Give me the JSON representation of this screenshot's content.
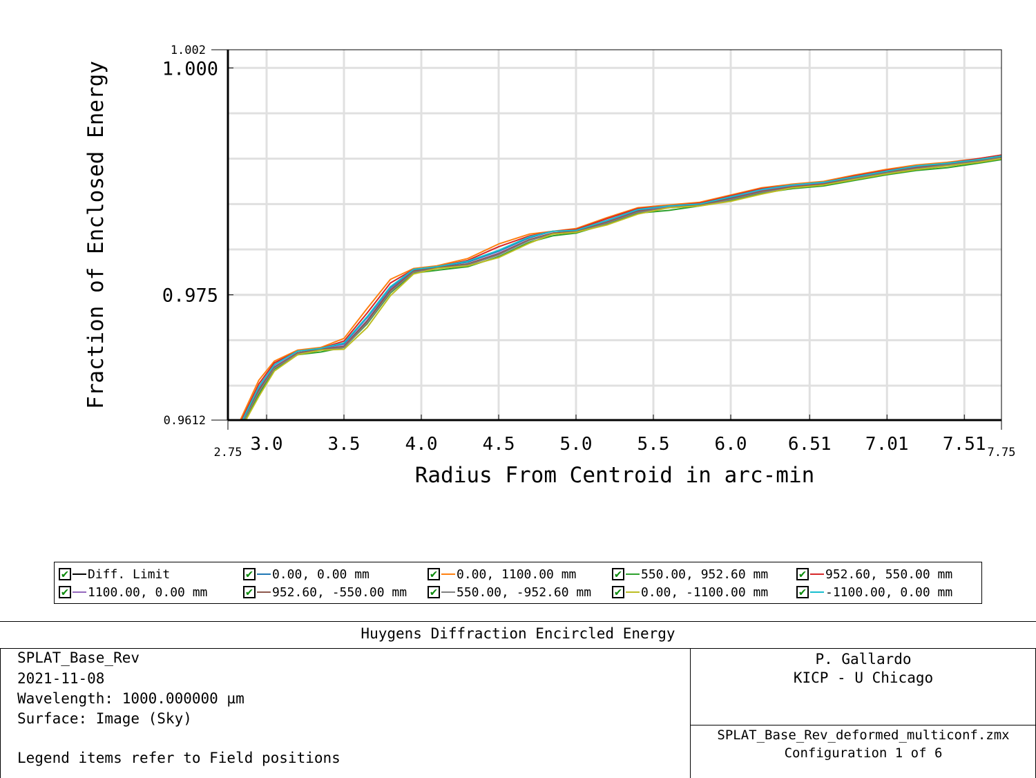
{
  "chart_data": {
    "type": "line",
    "title": "Huygens Diffraction Encircled Energy",
    "xlabel": "Radius From Centroid in arc-min",
    "ylabel": "Fraction of Enclosed Energy",
    "xlim": [
      2.75,
      7.75
    ],
    "ylim": [
      0.9612,
      1.002
    ],
    "x_tick_labels": [
      "3.0",
      "3.5",
      "4.0",
      "4.5",
      "5.0",
      "5.5",
      "6.0",
      "6.51",
      "7.01",
      "7.51"
    ],
    "x_tick_values": [
      3.0,
      3.5,
      4.0,
      4.5,
      5.0,
      5.5,
      6.0,
      6.51,
      7.01,
      7.51
    ],
    "x_end_labels": [
      "2.75",
      "7.75"
    ],
    "y_major_labels": [
      {
        "value": 1.0,
        "label": "1.000"
      },
      {
        "value": 0.975,
        "label": "0.975"
      }
    ],
    "y_end_labels": [
      {
        "value": 1.002,
        "label": "1.002"
      },
      {
        "value": 0.9612,
        "label": "0.9612"
      }
    ],
    "y_grid": [
      0.995,
      0.99,
      0.985,
      0.98,
      0.975,
      0.97,
      0.965
    ],
    "grid": true,
    "legend_placement": "below",
    "x": [
      2.83,
      2.95,
      3.05,
      3.2,
      3.35,
      3.5,
      3.65,
      3.8,
      3.95,
      4.1,
      4.3,
      4.5,
      4.7,
      4.85,
      5.0,
      5.2,
      5.4,
      5.6,
      5.8,
      6.0,
      6.2,
      6.4,
      6.6,
      6.8,
      7.0,
      7.2,
      7.4,
      7.6,
      7.75
    ],
    "series": [
      {
        "name": "Diff. Limit",
        "color": "#000000",
        "values": [
          null,
          null,
          null,
          null,
          null,
          null,
          null,
          null,
          null,
          null,
          null,
          null,
          null,
          null,
          null,
          null,
          null,
          null,
          null,
          null,
          null,
          null,
          null,
          null,
          null,
          null,
          null,
          null,
          null
        ]
      },
      {
        "name": "0.00, 0.00 mm",
        "color": "#1f77b4",
        "values": [
          0.9607,
          0.9648,
          0.9673,
          0.9688,
          0.9691,
          0.9696,
          0.9725,
          0.9758,
          0.9777,
          0.9781,
          0.9786,
          0.9798,
          0.9813,
          0.982,
          0.9821,
          0.9832,
          0.9843,
          0.9848,
          0.985,
          0.9857,
          0.9866,
          0.9871,
          0.9874,
          0.988,
          0.9886,
          0.9892,
          0.9895,
          0.9899,
          0.9903
        ]
      },
      {
        "name": "0.00, 1100.00 mm",
        "color": "#ff7f0e",
        "values": [
          0.9612,
          0.9656,
          0.9677,
          0.9689,
          0.9692,
          0.9702,
          0.9735,
          0.9767,
          0.9779,
          0.9782,
          0.979,
          0.9806,
          0.9817,
          0.982,
          0.9823,
          0.9835,
          0.9846,
          0.9849,
          0.9852,
          0.986,
          0.9868,
          0.9872,
          0.9875,
          0.9882,
          0.9888,
          0.9893,
          0.9896,
          0.99,
          0.9904
        ]
      },
      {
        "name": "550.00, 952.60 mm",
        "color": "#2ca02c",
        "values": [
          0.9604,
          0.964,
          0.9668,
          0.9684,
          0.9687,
          0.9692,
          0.9718,
          0.9752,
          0.9774,
          0.9777,
          0.9781,
          0.9792,
          0.9808,
          0.9815,
          0.9818,
          0.9828,
          0.984,
          0.9843,
          0.9848,
          0.9854,
          0.9862,
          0.9867,
          0.987,
          0.9876,
          0.9882,
          0.9887,
          0.989,
          0.9895,
          0.9899
        ]
      },
      {
        "name": "952.60, 550.00 mm",
        "color": "#d62728",
        "values": [
          0.9609,
          0.9652,
          0.9675,
          0.9688,
          0.9691,
          0.9699,
          0.973,
          0.9763,
          0.9778,
          0.9781,
          0.9788,
          0.9803,
          0.9815,
          0.982,
          0.9822,
          0.9834,
          0.9845,
          0.9848,
          0.9851,
          0.9859,
          0.9867,
          0.9871,
          0.9874,
          0.9881,
          0.9887,
          0.9892,
          0.9895,
          0.99,
          0.9904
        ]
      },
      {
        "name": "1100.00, 0.00 mm",
        "color": "#9467bd",
        "values": [
          0.9606,
          0.9646,
          0.9671,
          0.9686,
          0.969,
          0.9694,
          0.9722,
          0.9756,
          0.9776,
          0.978,
          0.9784,
          0.9796,
          0.9811,
          0.9818,
          0.982,
          0.9831,
          0.9842,
          0.9847,
          0.9849,
          0.9856,
          0.9865,
          0.987,
          0.9873,
          0.9879,
          0.9885,
          0.9891,
          0.9894,
          0.9898,
          0.9902
        ]
      },
      {
        "name": "952.60, -550.00 mm",
        "color": "#8c564b",
        "values": [
          0.9605,
          0.9645,
          0.967,
          0.9686,
          0.969,
          0.9693,
          0.9721,
          0.9755,
          0.9776,
          0.978,
          0.9784,
          0.9795,
          0.9811,
          0.9818,
          0.982,
          0.983,
          0.9842,
          0.9846,
          0.9849,
          0.9856,
          0.9864,
          0.9869,
          0.9872,
          0.9879,
          0.9885,
          0.989,
          0.9894,
          0.9898,
          0.9902
        ]
      },
      {
        "name": "550.00, -952.60 mm",
        "color": "#7f7f7f",
        "values": [
          0.9604,
          0.9643,
          0.9669,
          0.9685,
          0.9689,
          0.9692,
          0.9719,
          0.9753,
          0.9775,
          0.9779,
          0.9783,
          0.9794,
          0.981,
          0.9817,
          0.9819,
          0.9829,
          0.9841,
          0.9846,
          0.9848,
          0.9855,
          0.9863,
          0.9868,
          0.9871,
          0.9878,
          0.9884,
          0.9889,
          0.9893,
          0.9897,
          0.9901
        ]
      },
      {
        "name": "0.00, -1100.00 mm",
        "color": "#bcbd22",
        "values": [
          0.9601,
          0.9638,
          0.9666,
          0.9684,
          0.9689,
          0.969,
          0.9714,
          0.9749,
          0.9773,
          0.9779,
          0.9782,
          0.9791,
          0.9807,
          0.9817,
          0.9819,
          0.9827,
          0.9839,
          0.9846,
          0.9848,
          0.9853,
          0.9861,
          0.9868,
          0.9871,
          0.9877,
          0.9883,
          0.9888,
          0.9892,
          0.9896,
          0.99
        ]
      },
      {
        "name": "-1100.00, 0.00 mm",
        "color": "#17becf",
        "values": [
          0.9607,
          0.9649,
          0.9673,
          0.9688,
          0.9691,
          0.9697,
          0.9726,
          0.9759,
          0.9778,
          0.9781,
          0.9787,
          0.9799,
          0.9814,
          0.982,
          0.9821,
          0.9832,
          0.9844,
          0.9848,
          0.985,
          0.9858,
          0.9866,
          0.9871,
          0.9874,
          0.988,
          0.9886,
          0.9892,
          0.9895,
          0.9899,
          0.9903
        ]
      }
    ]
  },
  "legend": [
    {
      "label": "Diff. Limit",
      "color": "#000000"
    },
    {
      "label": "0.00, 0.00 mm",
      "color": "#1f77b4"
    },
    {
      "label": "0.00, 1100.00 mm",
      "color": "#ff7f0e"
    },
    {
      "label": "550.00, 952.60 mm",
      "color": "#2ca02c"
    },
    {
      "label": "952.60, 550.00 mm",
      "color": "#d62728"
    },
    {
      "label": "1100.00, 0.00 mm",
      "color": "#9467bd"
    },
    {
      "label": "952.60, -550.00 mm",
      "color": "#8c564b"
    },
    {
      "label": "550.00, -952.60 mm",
      "color": "#7f7f7f"
    },
    {
      "label": "0.00, -1100.00 mm",
      "color": "#bcbd22"
    },
    {
      "label": "-1100.00, 0.00 mm",
      "color": "#17becf"
    }
  ],
  "info": {
    "title": "Huygens Diffraction Encircled Energy",
    "left_lines": [
      "SPLAT_Base_Rev",
      "2021-11-08",
      "Wavelength: 1000.000000 µm",
      "Surface: Image (Sky)",
      "Legend items refer to Field positions"
    ],
    "author": "P. Gallardo",
    "org": "KICP - U Chicago",
    "file": "SPLAT_Base_Rev_deformed_multiconf.zmx",
    "config": "Configuration 1 of 6"
  }
}
